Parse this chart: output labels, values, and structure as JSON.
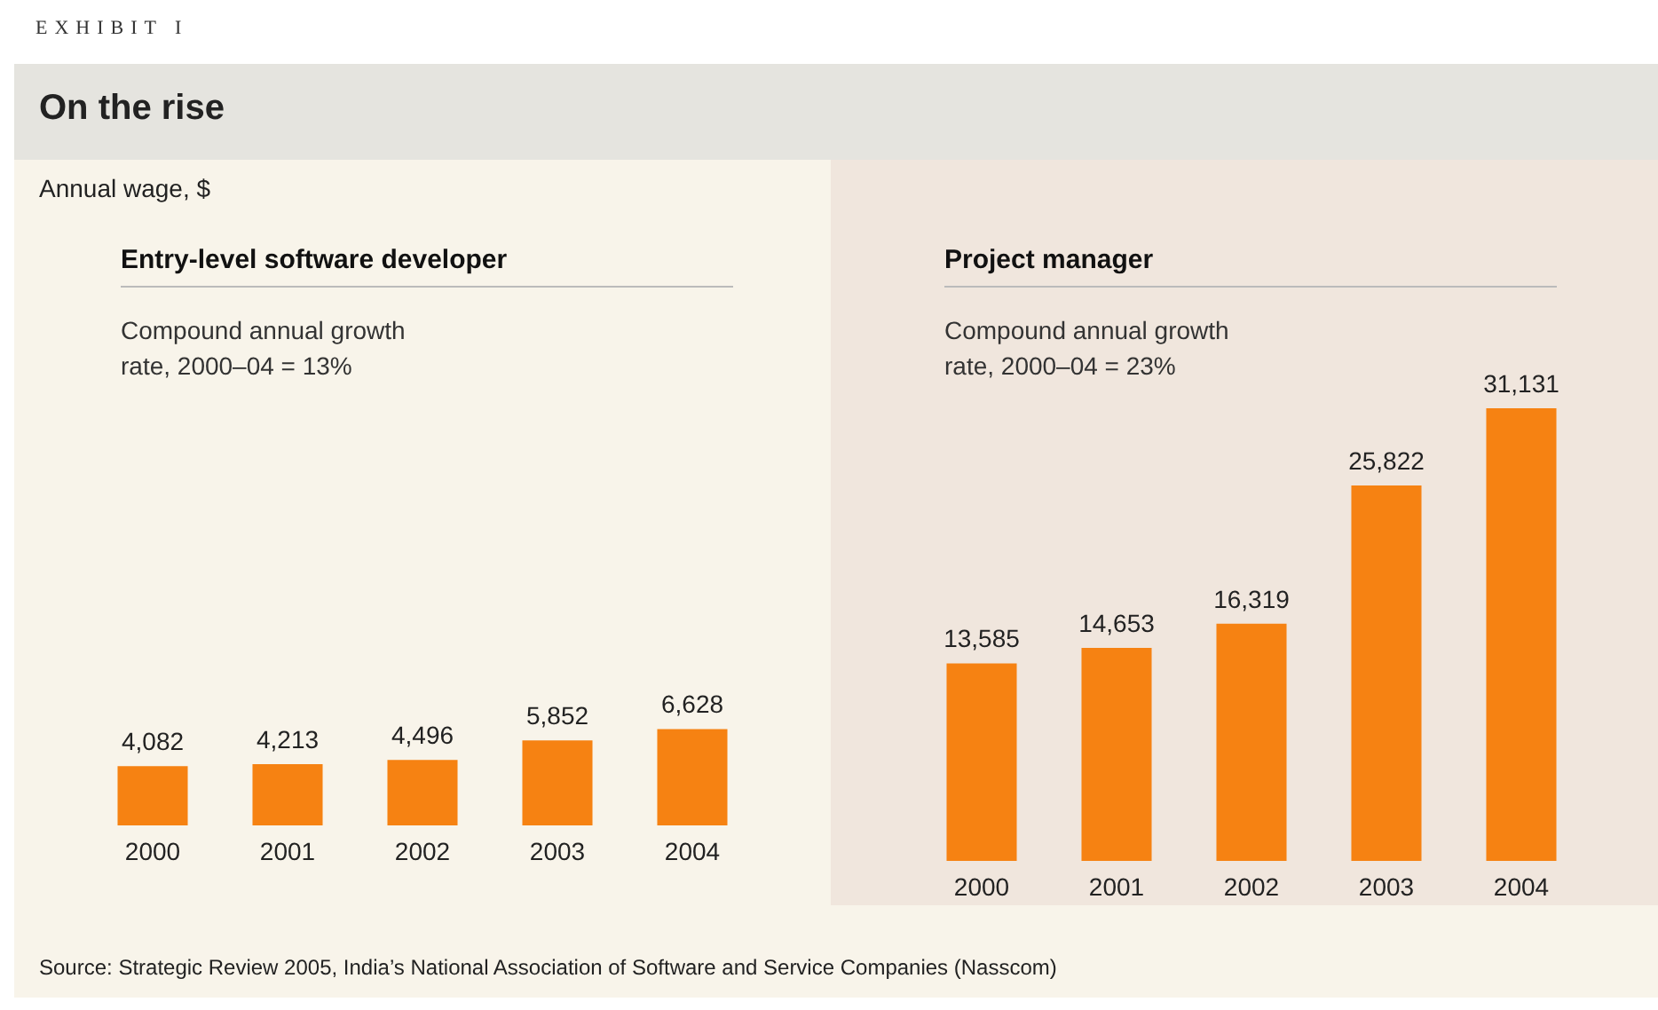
{
  "chart_data": [
    {
      "type": "bar",
      "title": "Entry-level software developer",
      "subtitle": "Compound annual growth rate, 2000–04 = 13%",
      "annotations": [
        "EXHIBIT I",
        "On the rise",
        "Annual wage, $"
      ],
      "categories": [
        "2000",
        "2001",
        "2002",
        "2003",
        "2004"
      ],
      "values": [
        4082,
        4213,
        4496,
        5852,
        6628
      ],
      "value_labels": [
        "4,082",
        "4,213",
        "4,496",
        "5,852",
        "6,628"
      ],
      "color": "#f68212",
      "tick_labels": "x"
    },
    {
      "type": "bar",
      "title": "Project manager",
      "subtitle": "Compound annual growth rate, 2000–04 = 23%",
      "annotations": [
        "Source: Strategic Review 2005, India’s National Association of Software and Service Companies (Nasscom)"
      ],
      "categories": [
        "2000",
        "2001",
        "2002",
        "2003",
        "2004"
      ],
      "values": [
        13585,
        14653,
        16319,
        25822,
        31131
      ],
      "value_labels": [
        "13,585",
        "14,653",
        "16,319",
        "25,822",
        "31,131"
      ],
      "color": "#f68212",
      "tick_labels": "x"
    }
  ]
}
